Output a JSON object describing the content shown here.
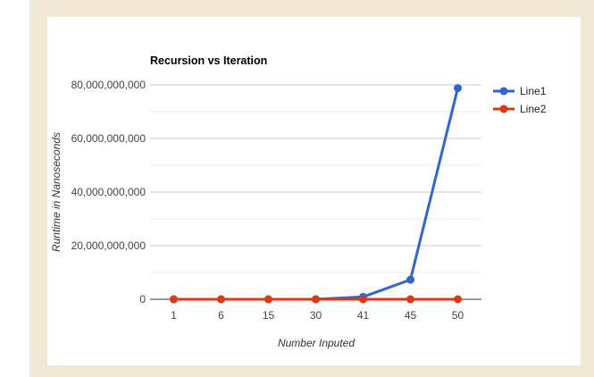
{
  "chart_data": {
    "type": "line",
    "title": "Recursion vs Iteration",
    "xlabel": "Number Inputed",
    "ylabel": "Runtime in Nanoseconds",
    "categories": [
      "1",
      "6",
      "15",
      "30",
      "41",
      "45",
      "50"
    ],
    "series": [
      {
        "name": "Line1",
        "color": "#3366cc",
        "values": [
          0,
          0,
          0,
          0,
          900000000,
          7300000000,
          78800000000
        ]
      },
      {
        "name": "Line2",
        "color": "#dc3912",
        "values": [
          0,
          0,
          0,
          0,
          0,
          0,
          0
        ]
      }
    ],
    "ylim": [
      0,
      80000000000
    ],
    "yticks": [
      0,
      20000000000,
      40000000000,
      60000000000,
      80000000000
    ],
    "ytick_labels": [
      "0",
      "20,000,000,000",
      "40,000,000,000",
      "60,000,000,000",
      "80,000,000,000"
    ],
    "grid": true,
    "legend_position": "right"
  }
}
